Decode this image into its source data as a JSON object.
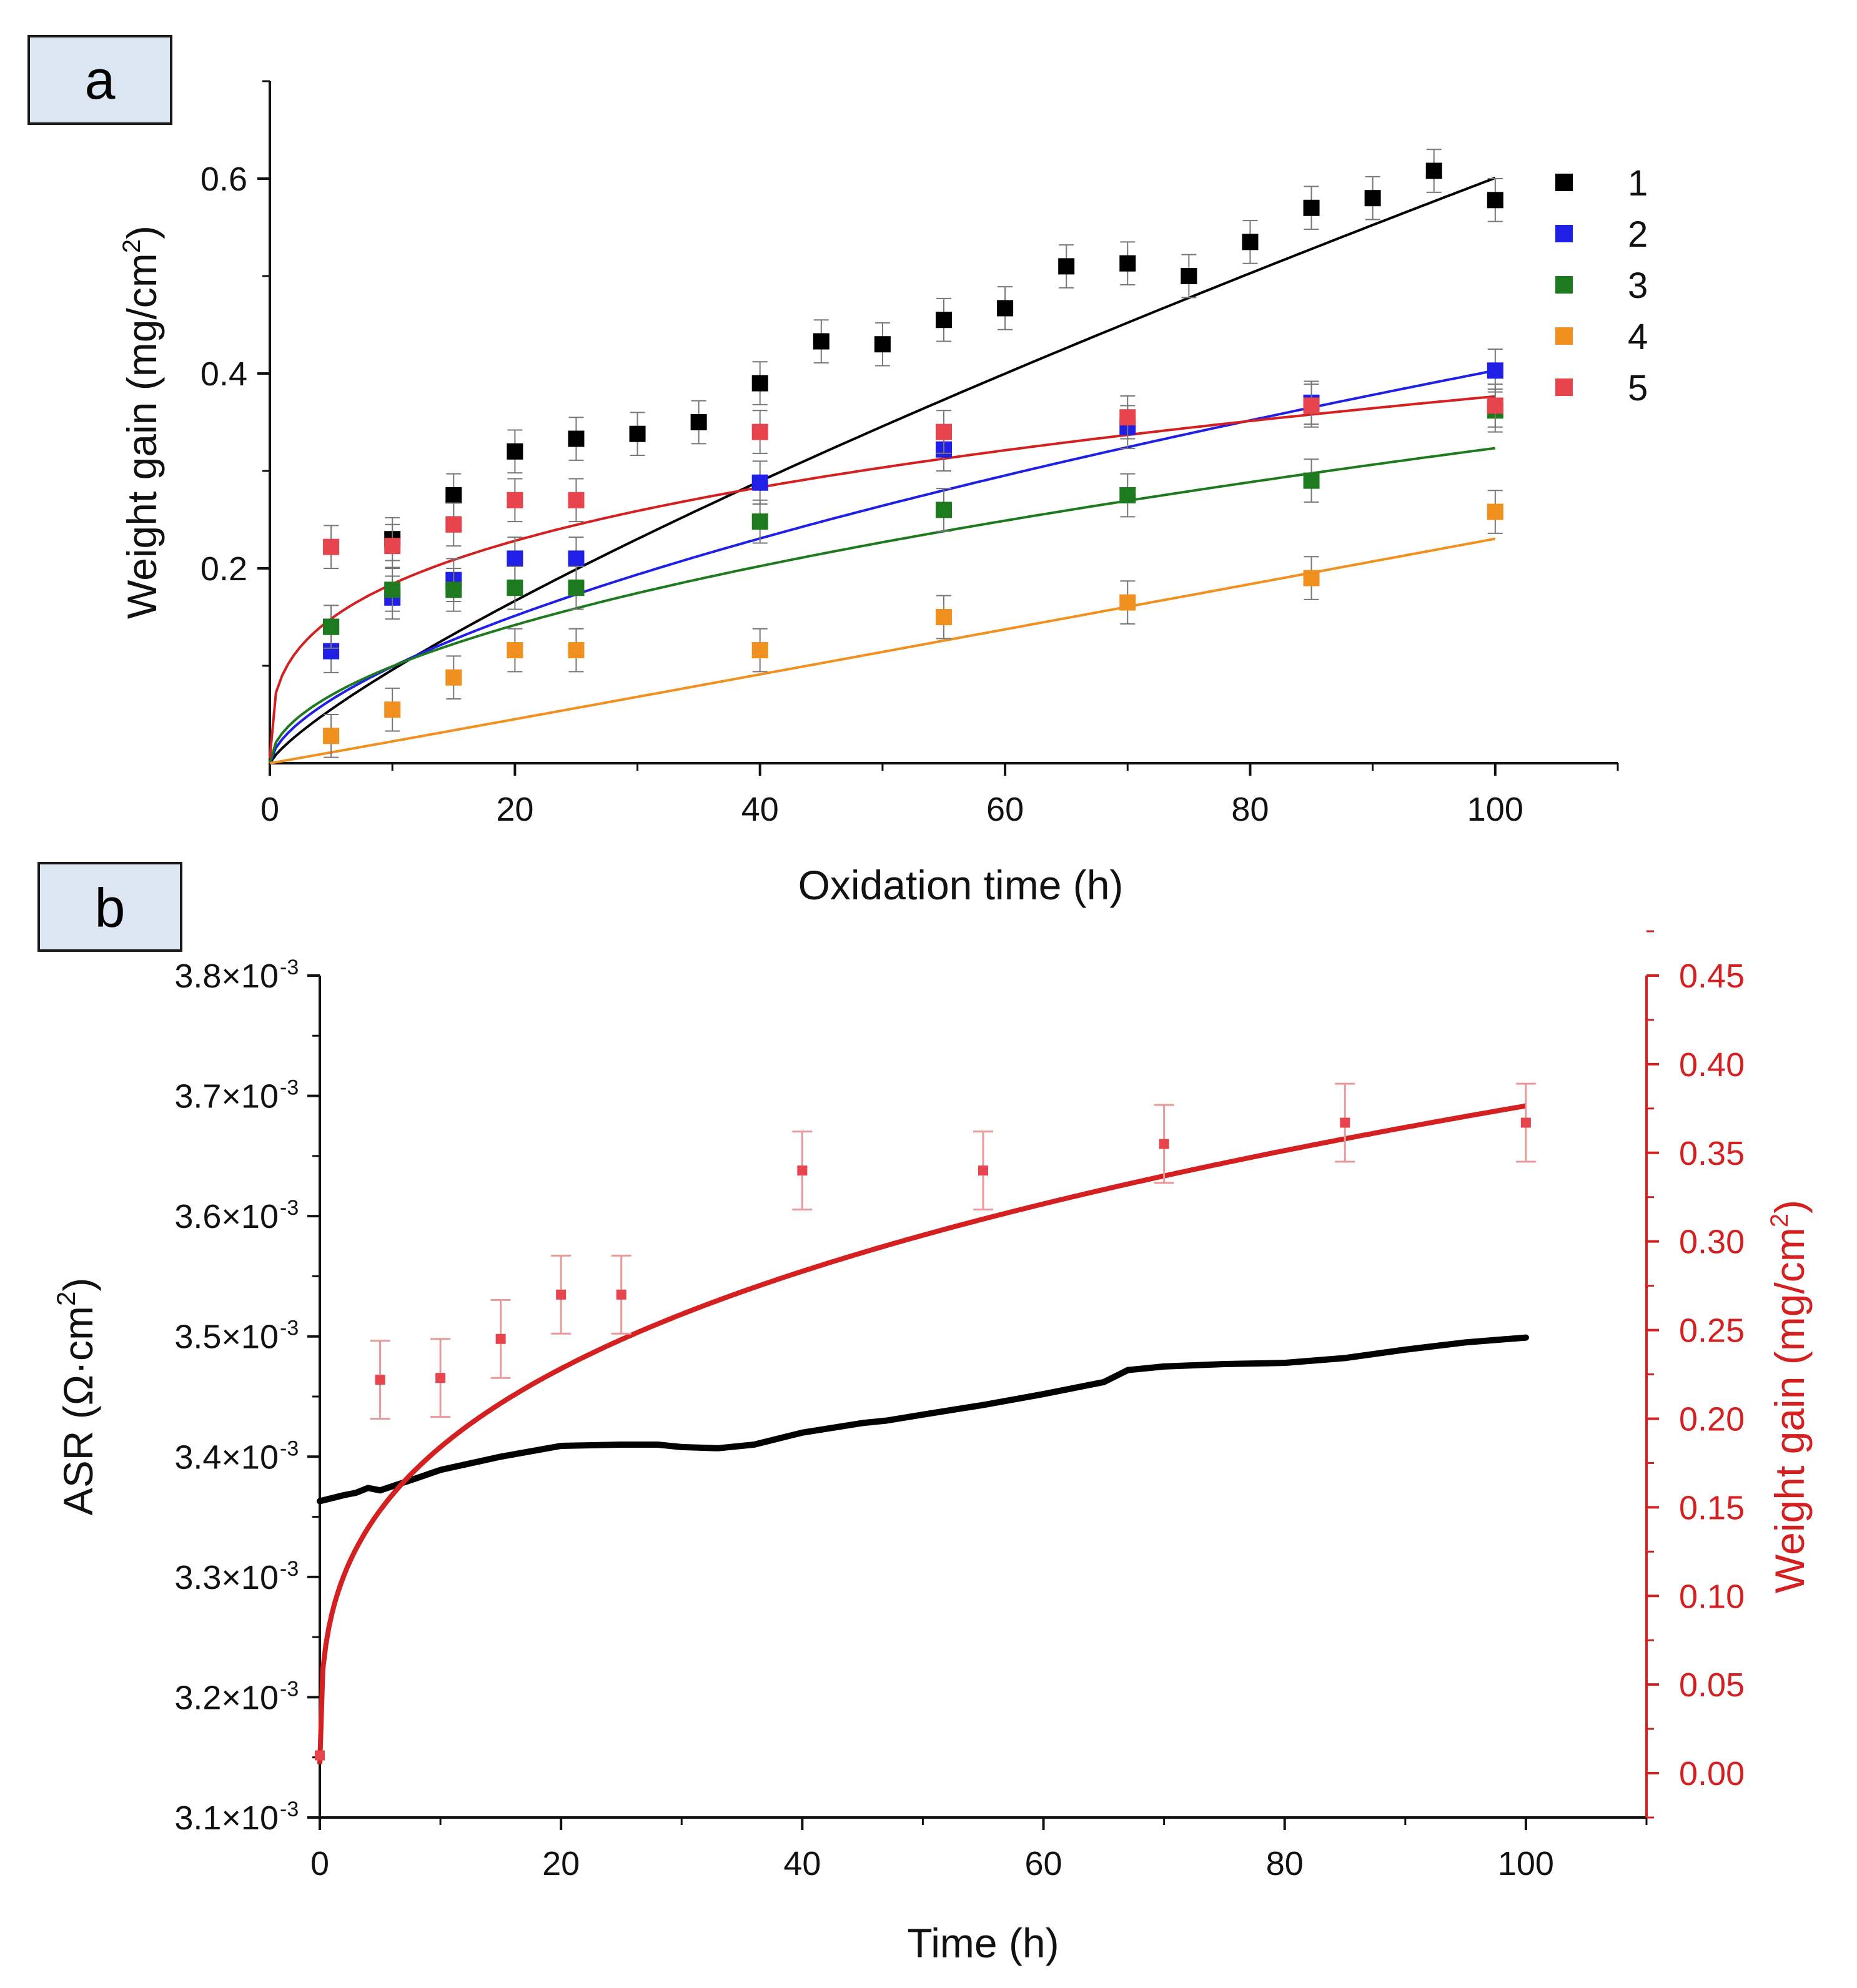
{
  "chart_data": [
    {
      "panel_label": "a",
      "type": "scatter",
      "xlabel": "Oxidation time (h)",
      "ylabel": "Weight gain (mg/cm",
      "ylabel_sup": "2",
      "ylabel_tail": ")",
      "xlim": [
        0,
        110
      ],
      "ylim": [
        0,
        0.7
      ],
      "xticks": [
        0,
        20,
        40,
        60,
        80,
        100
      ],
      "xtick_labels": [
        "0",
        "20",
        "40",
        "60",
        "80",
        "100"
      ],
      "yticks": [
        0.2,
        0.4,
        0.6
      ],
      "ytick_labels": [
        "0.2",
        "0.4",
        "0.6"
      ],
      "grid": false,
      "legend_position": "right",
      "series": [
        {
          "name": "1",
          "color": "#000000",
          "fit_color": "#000000",
          "points": [
            [
              5,
              0.14
            ],
            [
              10,
              0.23
            ],
            [
              15,
              0.275
            ],
            [
              20,
              0.32
            ],
            [
              25,
              0.333
            ],
            [
              30,
              0.338
            ],
            [
              35,
              0.35
            ],
            [
              40,
              0.39
            ],
            [
              45,
              0.433
            ],
            [
              50,
              0.43
            ],
            [
              55,
              0.455
            ],
            [
              60,
              0.467
            ],
            [
              65,
              0.51
            ],
            [
              70,
              0.513
            ],
            [
              75,
              0.5
            ],
            [
              80,
              0.535
            ],
            [
              85,
              0.57
            ],
            [
              90,
              0.58
            ],
            [
              95,
              0.608
            ],
            [
              100,
              0.578
            ]
          ],
          "error": 0.022,
          "fit": {
            "a": 0,
            "k": 0.0153,
            "n": 0.797
          }
        },
        {
          "name": "2",
          "color": "#1f1fe6",
          "fit_color": "#1f1fe6",
          "points": [
            [
              5,
              0.115
            ],
            [
              10,
              0.17
            ],
            [
              15,
              0.188
            ],
            [
              20,
              0.21
            ],
            [
              25,
              0.21
            ],
            [
              40,
              0.288
            ],
            [
              55,
              0.322
            ],
            [
              70,
              0.345
            ],
            [
              85,
              0.37
            ],
            [
              100,
              0.403
            ]
          ],
          "error": 0.022,
          "fit": {
            "a": 0,
            "k": 0.0244,
            "n": 0.609
          }
        },
        {
          "name": "3",
          "color": "#1e7a1e",
          "fit_color": "#1e7a1e",
          "points": [
            [
              5,
              0.14
            ],
            [
              10,
              0.178
            ],
            [
              15,
              0.178
            ],
            [
              20,
              0.18
            ],
            [
              25,
              0.18
            ],
            [
              40,
              0.248
            ],
            [
              55,
              0.26
            ],
            [
              70,
              0.275
            ],
            [
              85,
              0.29
            ],
            [
              100,
              0.362
            ]
          ],
          "error": 0.022,
          "fit": {
            "a": 0,
            "k": 0.0306,
            "n": 0.512
          }
        },
        {
          "name": "4",
          "color": "#f0901e",
          "fit_color": "#f0901e",
          "points": [
            [
              5,
              0.028
            ],
            [
              10,
              0.055
            ],
            [
              15,
              0.088
            ],
            [
              20,
              0.116
            ],
            [
              25,
              0.116
            ],
            [
              40,
              0.116
            ],
            [
              55,
              0.15
            ],
            [
              70,
              0.165
            ],
            [
              85,
              0.19
            ],
            [
              100,
              0.258
            ]
          ],
          "error": 0.022,
          "fit": {
            "a": 0,
            "k": 0.00218,
            "n": 1.012
          }
        },
        {
          "name": "5",
          "color": "#e8444e",
          "fit_color": "#d42020",
          "points": [
            [
              5,
              0.222
            ],
            [
              10,
              0.223
            ],
            [
              15,
              0.245
            ],
            [
              20,
              0.27
            ],
            [
              25,
              0.27
            ],
            [
              40,
              0.34
            ],
            [
              55,
              0.34
            ],
            [
              70,
              0.355
            ],
            [
              85,
              0.367
            ],
            [
              100,
              0.367
            ]
          ],
          "error": 0.022,
          "fit": {
            "a": 0,
            "k": 0.0899,
            "n": 0.311
          }
        }
      ]
    },
    {
      "panel_label": "b",
      "type": "line",
      "xlabel": "Time (h)",
      "xlim": [
        0,
        110
      ],
      "xticks": [
        0,
        20,
        40,
        60,
        80,
        100
      ],
      "xtick_labels": [
        "0",
        "20",
        "40",
        "60",
        "80",
        "100"
      ],
      "grid": false,
      "left_axis": {
        "label": "ASR (Ω·cm",
        "label_sup": "2",
        "label_tail": ")",
        "ylim": [
          0.0031,
          0.0038
        ],
        "ticks": [
          0.0031,
          0.0032,
          0.0033,
          0.0034,
          0.0035,
          0.0036,
          0.0037,
          0.0038
        ],
        "tick_labels": [
          "3.1×10",
          "3.2×10",
          "3.3×10",
          "3.4×10",
          "3.5×10",
          "3.6×10",
          "3.7×10",
          "3.8×10"
        ],
        "tick_exponent": "-3",
        "color": "#000000"
      },
      "right_axis": {
        "label": "Weight gain (mg/cm",
        "label_sup": "2",
        "label_tail": ")",
        "ylim": [
          -0.025,
          0.45
        ],
        "ticks": [
          0.0,
          0.05,
          0.1,
          0.15,
          0.2,
          0.25,
          0.3,
          0.35,
          0.4,
          0.45
        ],
        "tick_labels": [
          "0.00",
          "0.05",
          "0.10",
          "0.15",
          "0.20",
          "0.25",
          "0.30",
          "0.35",
          "0.40",
          "0.45"
        ],
        "color": "#d42020"
      },
      "asr_series": {
        "axis": "left",
        "color": "#000000",
        "x": [
          0,
          2,
          3,
          4,
          5,
          8,
          10,
          15,
          20,
          25,
          28,
          30,
          33,
          36,
          40,
          45,
          47,
          50,
          55,
          60,
          65,
          67,
          70,
          75,
          80,
          85,
          90,
          95,
          100
        ],
        "y": [
          0.003363,
          0.003368,
          0.00337,
          0.003374,
          0.003372,
          0.003382,
          0.003389,
          0.0034,
          0.003409,
          0.00341,
          0.00341,
          0.003408,
          0.003407,
          0.00341,
          0.00342,
          0.003428,
          0.00343,
          0.003435,
          0.003443,
          0.003452,
          0.003462,
          0.003472,
          0.003475,
          0.003477,
          0.003478,
          0.003482,
          0.003489,
          0.003495,
          0.003499
        ]
      },
      "weight_gain_series": {
        "axis": "right",
        "color": "#e8444e",
        "points": [
          [
            0,
            0.01
          ],
          [
            5,
            0.222
          ],
          [
            10,
            0.223
          ],
          [
            15,
            0.245
          ],
          [
            20,
            0.27
          ],
          [
            25,
            0.27
          ],
          [
            40,
            0.34
          ],
          [
            55,
            0.34
          ],
          [
            70,
            0.355
          ],
          [
            85,
            0.367
          ],
          [
            100,
            0.367
          ]
        ],
        "error": 0.022,
        "fit_color": "#d42020",
        "fit": {
          "a": 0,
          "k": 0.0899,
          "n": 0.311
        }
      }
    }
  ]
}
